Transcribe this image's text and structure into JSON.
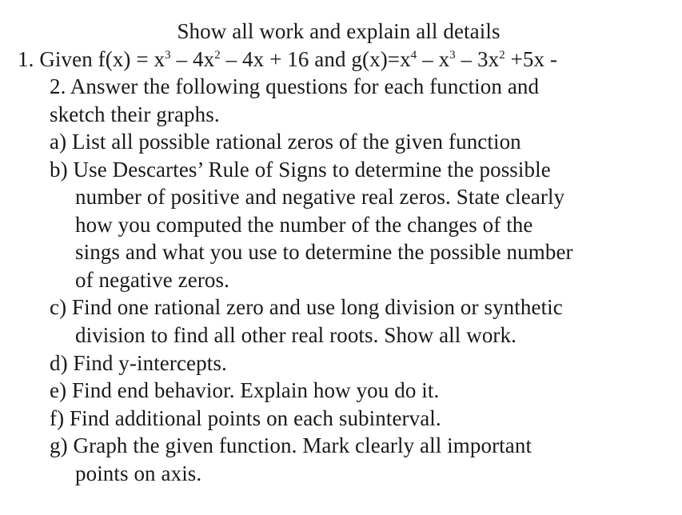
{
  "typography": {
    "font_family": "Times New Roman",
    "font_size_pt": 20,
    "line_height": 1.28,
    "text_color": "#1a1a1a",
    "background_color": "#ffffff"
  },
  "header": {
    "title": "Show all work and explain all details"
  },
  "problem": {
    "number": "1.",
    "given_prefix": "Given f(x) = x",
    "f_exp1": "3",
    "f_seg2": " – 4x",
    "f_exp2": "2",
    "f_seg3": " – 4x + 16 and g(x)=x",
    "g_exp1": "4",
    "g_seg2": " – x",
    "g_exp2": "3",
    "g_seg3": " – 3x",
    "g_exp3": "2",
    "g_tail": " +5x -",
    "line2": "2. Answer the following questions for each function and",
    "line3": "sketch their graphs."
  },
  "items": {
    "a": "a) List all possible rational zeros of the given function",
    "b_l1": "b) Use Descartes’ Rule of Signs to determine the possible",
    "b_l2": "number of positive and negative real zeros. State clearly",
    "b_l3": "how you computed the number of the changes of the",
    "b_l4": "sings and what you use to determine the possible number",
    "b_l5": "of negative zeros.",
    "c_l1": "c) Find one rational zero and use long division or synthetic",
    "c_l2": "division to find all other real roots.  Show all work.",
    "d": "d) Find y-intercepts.",
    "e": "e) Find end behavior.  Explain how you do it.",
    "f": "f) Find additional points on each subinterval.",
    "g_l1": "g) Graph the given function.  Mark clearly all important",
    "g_l2": "points on axis."
  }
}
